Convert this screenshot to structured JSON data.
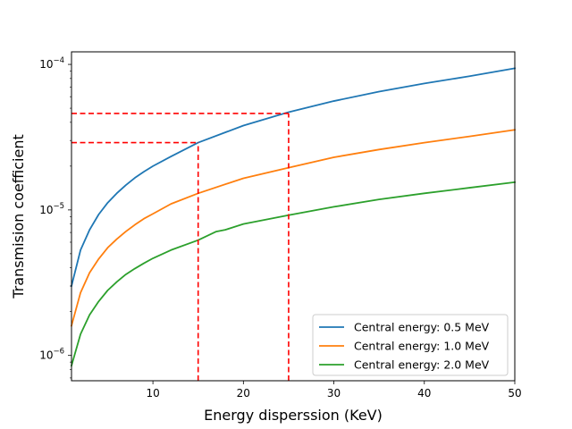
{
  "chart_data": {
    "type": "line",
    "title": "",
    "xlabel": "Energy disperssion (KeV)",
    "ylabel": "Transmision coefficient",
    "xlim": [
      1,
      50
    ],
    "ylim": [
      6.7e-07,
      0.000122
    ],
    "yscale": "log",
    "grid": false,
    "legend_position": "lower-right",
    "x_ticks": [
      10,
      20,
      30,
      40,
      50
    ],
    "x_tick_labels": [
      "10",
      "20",
      "30",
      "40",
      "50"
    ],
    "y_ticks": [
      1e-06,
      1e-05,
      0.0001
    ],
    "y_tick_labels": [
      {
        "base": "10",
        "exp": "−6"
      },
      {
        "base": "10",
        "exp": "−5"
      },
      {
        "base": "10",
        "exp": "−4"
      }
    ],
    "series": [
      {
        "name": "Central energy: 0.5 MeV",
        "color": "#1f77b4",
        "x": [
          1,
          2,
          3,
          4,
          5,
          6,
          7,
          8,
          9,
          10,
          12,
          15,
          20,
          25,
          30,
          35,
          40,
          45,
          50
        ],
        "y": [
          3e-06,
          5.3e-06,
          7.3e-06,
          9.3e-06,
          1.12e-05,
          1.3e-05,
          1.48e-05,
          1.66e-05,
          1.83e-05,
          2e-05,
          2.33e-05,
          2.9e-05,
          3.8e-05,
          4.7e-05,
          5.6e-05,
          6.5e-05,
          7.4e-05,
          8.3e-05,
          9.4e-05
        ]
      },
      {
        "name": "Central energy: 1.0 MeV",
        "color": "#ff7f0e",
        "x": [
          1,
          2,
          3,
          4,
          5,
          6,
          7,
          8,
          9,
          10,
          12,
          15,
          20,
          25,
          30,
          35,
          40,
          45,
          50
        ],
        "y": [
          1.6e-06,
          2.7e-06,
          3.7e-06,
          4.6e-06,
          5.5e-06,
          6.3e-06,
          7.1e-06,
          7.9e-06,
          8.7e-06,
          9.4e-06,
          1.1e-05,
          1.3e-05,
          1.65e-05,
          1.95e-05,
          2.3e-05,
          2.6e-05,
          2.9e-05,
          3.2e-05,
          3.55e-05
        ]
      },
      {
        "name": "Central energy: 2.0 MeV",
        "color": "#2ca02c",
        "x": [
          1,
          2,
          3,
          4,
          5,
          6,
          7,
          8,
          9,
          10,
          12,
          15,
          17,
          18,
          20,
          25,
          30,
          35,
          40,
          45,
          50
        ],
        "y": [
          8.5e-07,
          1.4e-06,
          1.9e-06,
          2.35e-06,
          2.8e-06,
          3.2e-06,
          3.6e-06,
          3.95e-06,
          4.3e-06,
          4.65e-06,
          5.3e-06,
          6.2e-06,
          7.1e-06,
          7.3e-06,
          8e-06,
          9.2e-06,
          1.05e-05,
          1.18e-05,
          1.3e-05,
          1.42e-05,
          1.55e-05
        ]
      }
    ],
    "annotations": [
      {
        "name": "marker-15kev",
        "x": 15,
        "y": 2.9e-05,
        "color": "#ff0000",
        "style": "dashed"
      },
      {
        "name": "marker-25kev",
        "x": 25,
        "y": 4.6e-05,
        "color": "#ff0000",
        "style": "dashed"
      }
    ]
  }
}
